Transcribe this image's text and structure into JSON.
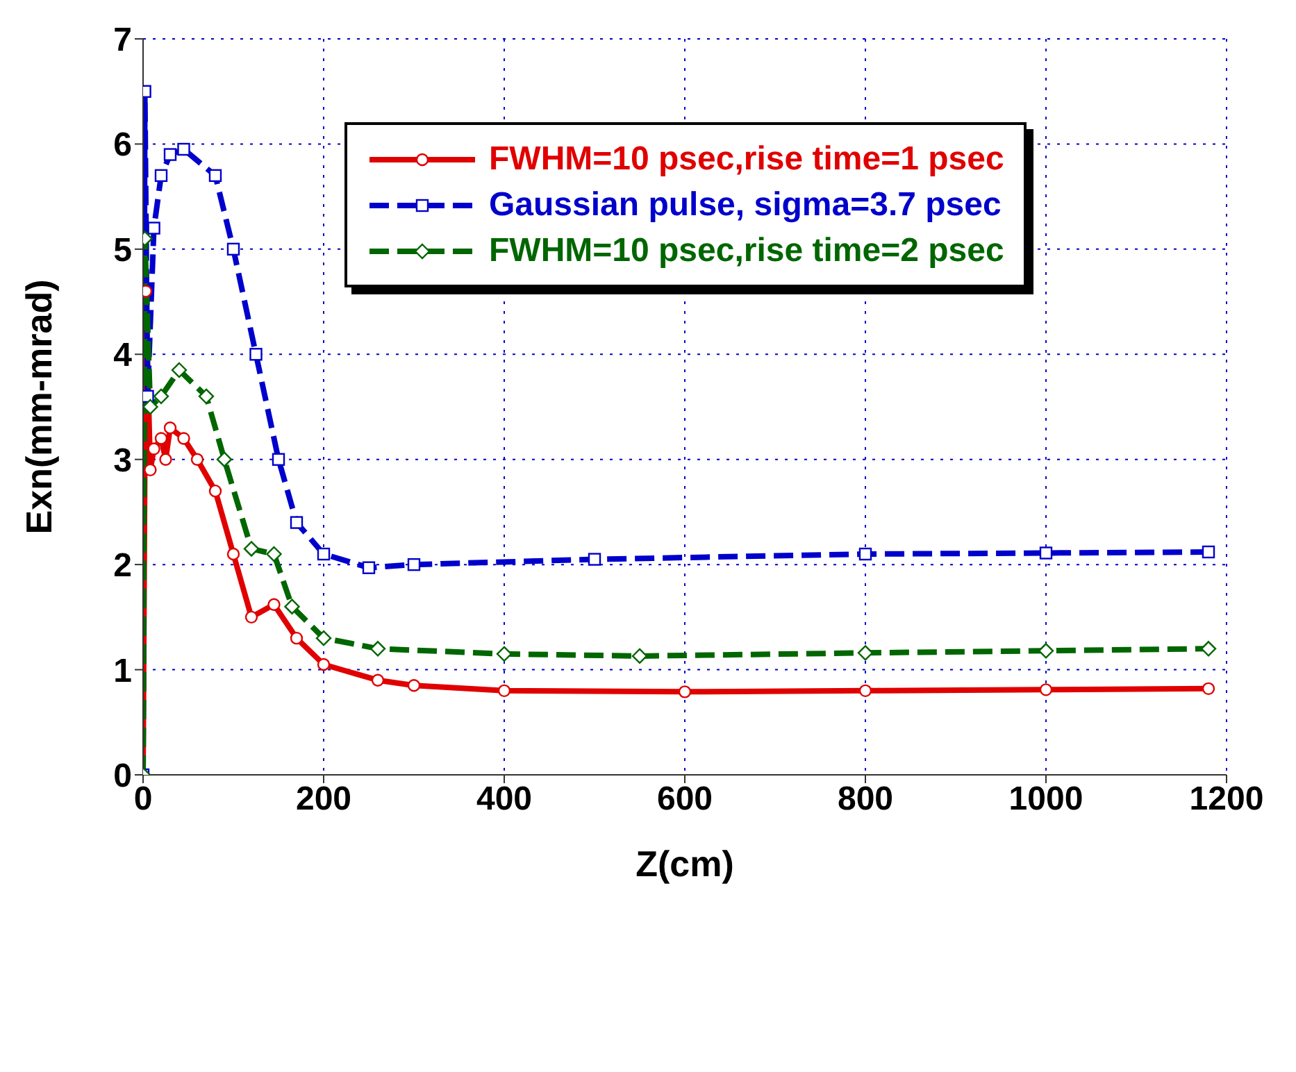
{
  "chart_data": {
    "type": "line",
    "xlabel": "Z(cm)",
    "ylabel": "Exn(mm-mrad)",
    "xlim": [
      0,
      1200
    ],
    "ylim": [
      0,
      7
    ],
    "xticks": [
      0,
      200,
      400,
      600,
      800,
      1000,
      1200
    ],
    "yticks": [
      0,
      1,
      2,
      3,
      4,
      5,
      6,
      7
    ],
    "grid": true,
    "legend": "top right",
    "series": [
      {
        "name": "FWHM=10 psec,rise time=1 psec",
        "color": "#e00000",
        "marker": "circle",
        "line_style": "solid",
        "x": [
          0,
          3,
          8,
          12,
          20,
          25,
          30,
          45,
          60,
          80,
          100,
          120,
          145,
          170,
          200,
          260,
          300,
          400,
          600,
          800,
          1000,
          1180
        ],
        "values": [
          0,
          4.6,
          2.9,
          3.1,
          3.2,
          3.0,
          3.3,
          3.2,
          3.0,
          2.7,
          2.1,
          1.5,
          1.62,
          1.3,
          1.05,
          0.9,
          0.85,
          0.8,
          0.79,
          0.8,
          0.81,
          0.82
        ]
      },
      {
        "name": "Gaussian pulse, sigma=3.7 psec",
        "color": "#0000cc",
        "marker": "square",
        "line_style": "dashed",
        "x": [
          0,
          2,
          5,
          12,
          20,
          30,
          45,
          80,
          100,
          125,
          150,
          170,
          200,
          250,
          300,
          500,
          800,
          1000,
          1180
        ],
        "values": [
          0,
          6.5,
          3.6,
          5.2,
          5.7,
          5.9,
          5.95,
          5.7,
          5.0,
          4.0,
          3.0,
          2.4,
          2.1,
          1.97,
          2.0,
          2.05,
          2.1,
          2.11,
          2.12
        ]
      },
      {
        "name": "FWHM=10 psec,rise time=2 psec",
        "color": "#006600",
        "marker": "diamond",
        "line_style": "dashed",
        "x": [
          0,
          2,
          8,
          20,
          40,
          70,
          90,
          120,
          145,
          165,
          200,
          260,
          400,
          550,
          800,
          1000,
          1180
        ],
        "values": [
          0,
          5.1,
          3.5,
          3.6,
          3.85,
          3.6,
          3.0,
          2.15,
          2.1,
          1.6,
          1.3,
          1.2,
          1.15,
          1.13,
          1.16,
          1.18,
          1.2
        ]
      }
    ]
  }
}
